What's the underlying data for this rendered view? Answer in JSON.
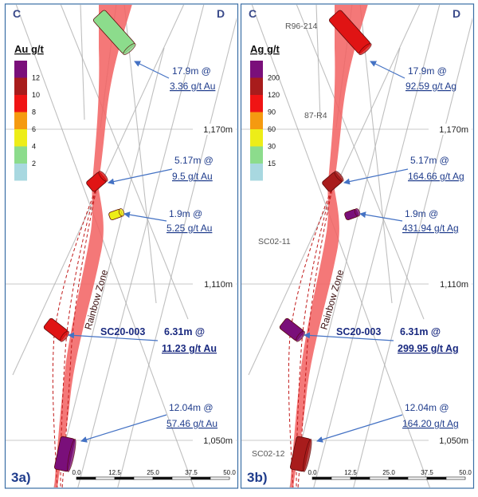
{
  "panels": [
    {
      "id": "3a",
      "label": "3a)",
      "corner_left": "C",
      "corner_right": "D",
      "legend": {
        "title": "Au g/t",
        "items": [
          {
            "label": "12",
            "color": "#7a0f7a"
          },
          {
            "label": "10",
            "color": "#a81c1c"
          },
          {
            "label": "8",
            "color": "#f01414"
          },
          {
            "label": "6",
            "color": "#f59a10"
          },
          {
            "label": "4",
            "color": "#eded18"
          },
          {
            "label": "2",
            "color": "#8cdc8c"
          },
          {
            "label": "",
            "color": "#a8d8e0"
          }
        ]
      },
      "elevations": [
        "1,170m",
        "1,110m",
        "1,050m"
      ],
      "scale_ticks": [
        "0.0",
        "12.5",
        "25.0",
        "37.5",
        "50.0"
      ],
      "zone_label": "Rainbow Zone",
      "annotations": [
        {
          "line1": "17.9m @",
          "line2": "3.36 g/t Au",
          "bold": false
        },
        {
          "line1": "5.17m @",
          "line2": "9.5 g/t Au",
          "bold": false
        },
        {
          "line1": "1.9m @",
          "line2": "5.25 g/t Au",
          "bold": false
        },
        {
          "line1": "6.31m @",
          "line2": "11.23 g/t Au",
          "bold": true,
          "hole": "SC20-003"
        },
        {
          "line1": "12.04m @",
          "line2": "57.46 g/t Au",
          "bold": false
        }
      ],
      "hole_labels": []
    },
    {
      "id": "3b",
      "label": "3b)",
      "corner_left": "C",
      "corner_right": "D",
      "legend": {
        "title": "Ag g/t",
        "items": [
          {
            "label": "200",
            "color": "#7a0f7a"
          },
          {
            "label": "120",
            "color": "#a81c1c"
          },
          {
            "label": "90",
            "color": "#f01414"
          },
          {
            "label": "60",
            "color": "#f59a10"
          },
          {
            "label": "30",
            "color": "#eded18"
          },
          {
            "label": "15",
            "color": "#8cdc8c"
          },
          {
            "label": "",
            "color": "#a8d8e0"
          }
        ]
      },
      "elevations": [
        "1,170m",
        "1,110m",
        "1,050m"
      ],
      "scale_ticks": [
        "0.0",
        "12.5",
        "25.0",
        "37.5",
        "50.0"
      ],
      "zone_label": "Rainbow Zone",
      "annotations": [
        {
          "line1": "17.9m @",
          "line2": "92.59 g/t Ag",
          "bold": false
        },
        {
          "line1": "5.17m @",
          "line2": "164.66 g/t Ag",
          "bold": false
        },
        {
          "line1": "1.9m @",
          "line2": "431.94 g/t Ag",
          "bold": false
        },
        {
          "line1": "6.31m @",
          "line2": "299.95 g/t Ag",
          "bold": true,
          "hole": "SC20-003"
        },
        {
          "line1": "12.04m @",
          "line2": "164.20 g/t Ag",
          "bold": false
        }
      ],
      "hole_labels": [
        "R96-214",
        "87-R4",
        "SC02-11",
        "SC02-12"
      ]
    }
  ],
  "colors": {
    "zone": "#f26060",
    "arrow": "#4472c4",
    "annotation_text": "#1f3c8c",
    "bold_text": "#1a2a80",
    "section_line": "#b0b0b0",
    "elevation_line": "#c8c8c8",
    "panel_border": "#3a6ea5"
  }
}
